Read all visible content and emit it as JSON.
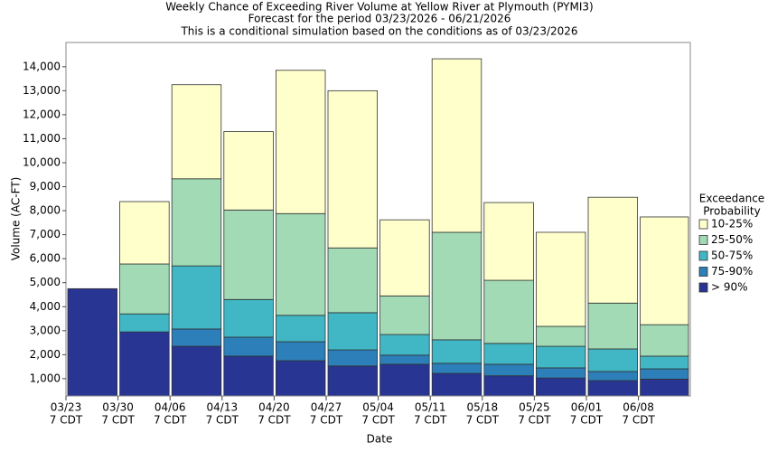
{
  "chart_data": {
    "type": "stacked_bar",
    "title": "Weekly Chance of Exceeding River Volume at Yellow River at Plymouth (PYMI3)",
    "subtitle": "Forecast for the period 03/23/2026 - 06/21/2026",
    "note": "This is a conditional simulation based on the conditions as of 03/23/2026",
    "x_label": "Date",
    "y_label": "Volume (AC-FT)",
    "categories": [
      "03/23",
      "03/30",
      "04/06",
      "04/13",
      "04/20",
      "04/27",
      "05/04",
      "05/11",
      "05/18",
      "05/25",
      "06/01",
      "06/08"
    ],
    "category_sublabel": "7 CDT",
    "legend_title": [
      "Exceedance",
      "Probability"
    ],
    "legend_position": "right",
    "series": [
      {
        "name": "> 90%",
        "color": "#283593",
        "values": [
          4750,
          2950,
          2350,
          1940,
          1750,
          1530,
          1600,
          1220,
          1120,
          1030,
          920,
          980
        ]
      },
      {
        "name": "75-90%",
        "color": "#2c7fb8",
        "values": [
          0,
          0,
          720,
          790,
          790,
          670,
          380,
          420,
          480,
          420,
          380,
          430
        ]
      },
      {
        "name": "50-75%",
        "color": "#41b6c4",
        "values": [
          0,
          750,
          2630,
          1570,
          1100,
          1550,
          860,
          980,
          870,
          900,
          940,
          530
        ]
      },
      {
        "name": "25-50%",
        "color": "#a1dab4",
        "values": [
          0,
          2080,
          3630,
          3730,
          4240,
          2700,
          1610,
          4480,
          2630,
          830,
          1910,
          1310
        ]
      },
      {
        "name": "10-25%",
        "color": "#ffffcc",
        "values": [
          0,
          2600,
          3920,
          3270,
          5970,
          6550,
          3170,
          7230,
          3240,
          3920,
          4410,
          4490
        ]
      }
    ],
    "ylim": [
      280,
      15010
    ],
    "yticks": [
      {
        "value": 1000,
        "label": "1,000"
      },
      {
        "value": 2000,
        "label": "2,000"
      },
      {
        "value": 3000,
        "label": "3,000"
      },
      {
        "value": 4000,
        "label": "4,000"
      },
      {
        "value": 5000,
        "label": "5,000"
      },
      {
        "value": 6000,
        "label": "6,000"
      },
      {
        "value": 7000,
        "label": "7,000"
      },
      {
        "value": 8000,
        "label": "8,000"
      },
      {
        "value": 9000,
        "label": "9,000"
      },
      {
        "value": 10000,
        "label": "10,000"
      },
      {
        "value": 11000,
        "label": "11,000"
      },
      {
        "value": 12000,
        "label": "12,000"
      },
      {
        "value": 13000,
        "label": "13,000"
      },
      {
        "value": 14000,
        "label": "14,000"
      }
    ],
    "grid": false
  }
}
